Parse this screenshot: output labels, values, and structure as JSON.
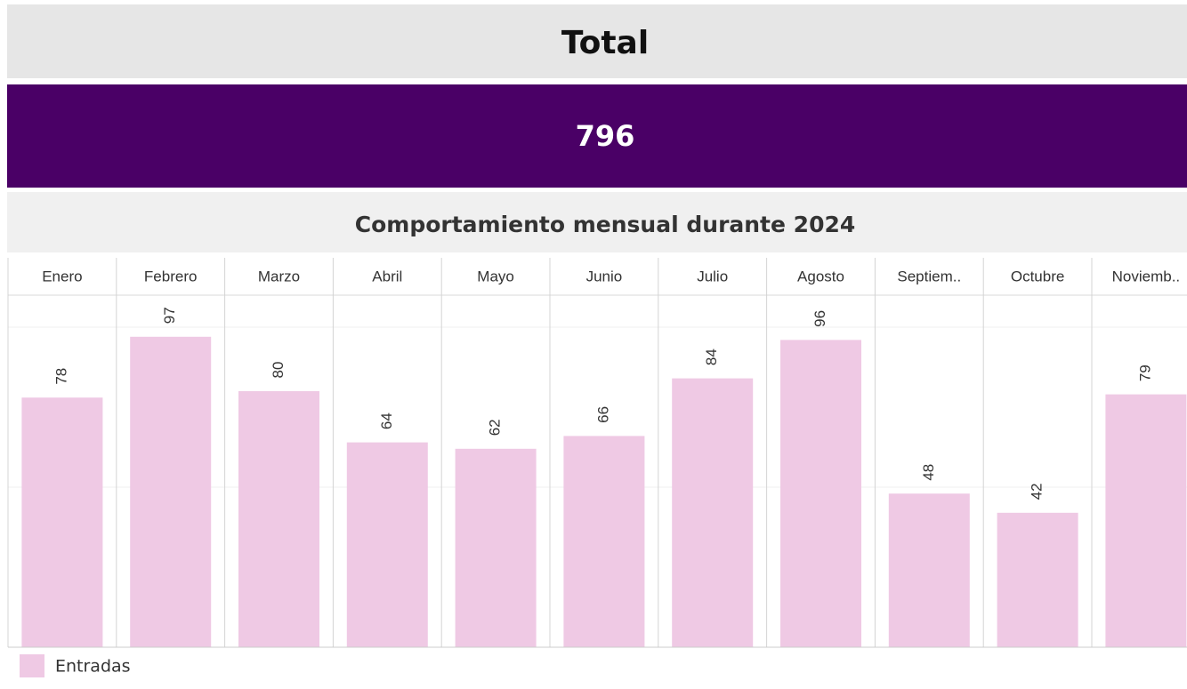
{
  "kpi": {
    "title": "Total",
    "value": 796
  },
  "chart_data": {
    "type": "bar",
    "title": "Comportamiento mensual durante 2024",
    "categories": [
      "Enero",
      "Febrero",
      "Marzo",
      "Abril",
      "Mayo",
      "Junio",
      "Julio",
      "Agosto",
      "Septiem..",
      "Octubre",
      "Noviemb.."
    ],
    "series": [
      {
        "name": "Entradas",
        "color": "#efc9e4",
        "values": [
          78,
          97,
          80,
          64,
          62,
          66,
          84,
          96,
          48,
          42,
          79
        ]
      }
    ],
    "ylim": [
      0,
      110
    ],
    "yticks": [
      0,
      50,
      100
    ],
    "grid": true
  }
}
